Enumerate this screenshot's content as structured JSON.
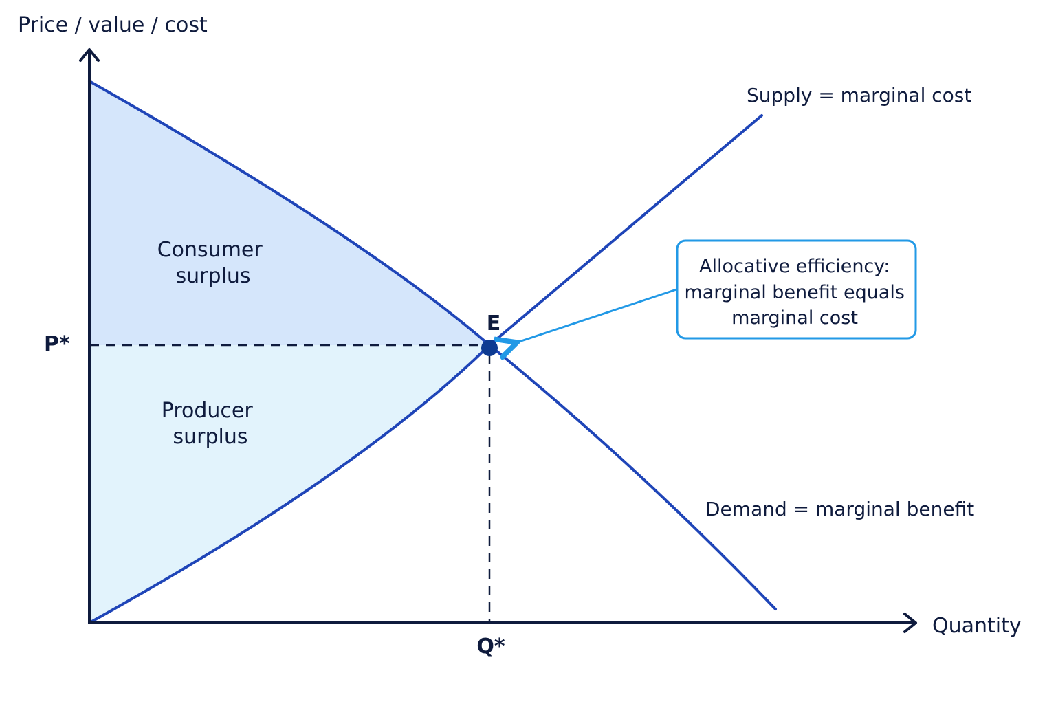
{
  "axes": {
    "y_title": "Price / value / cost",
    "x_title": "Quantity"
  },
  "ticks": {
    "price": "P*",
    "quantity": "Q*"
  },
  "equilibrium": {
    "label": "E"
  },
  "curves": {
    "supply_label": "Supply = marginal cost",
    "demand_label": "Demand = marginal benefit"
  },
  "areas": {
    "consumer_surplus": [
      "Consumer",
      "surplus"
    ],
    "producer_surplus": [
      "Producer",
      "surplus"
    ]
  },
  "callout": {
    "lines": [
      "Allocative efficiency:",
      "marginal benefit equals",
      "marginal cost"
    ]
  },
  "colors": {
    "axis": "#0f1b3d",
    "curve": "#1f45b8",
    "consumer_fill": "#d5e6fb",
    "producer_fill": "#e2f3fc",
    "callout_border": "#2299e6",
    "point": "#0d3a91"
  }
}
